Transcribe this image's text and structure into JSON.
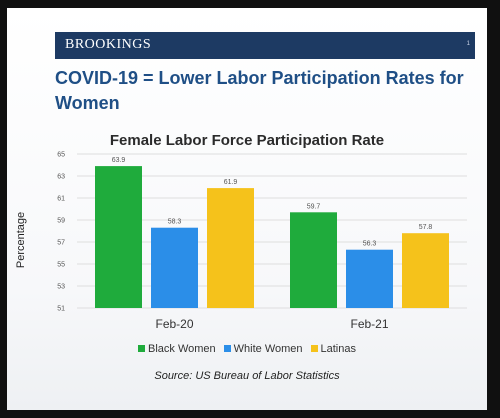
{
  "header": {
    "brand": "BROOKINGS",
    "page_number": "1"
  },
  "slide": {
    "title": "COVID-19 = Lower Labor Participation Rates for Women",
    "source": "Source: US Bureau of Labor Statistics"
  },
  "chart_data": {
    "type": "bar",
    "title": "Female Labor Force Participation Rate",
    "xlabel": "",
    "ylabel": "Percentage",
    "categories": [
      "Feb-20",
      "Feb-21"
    ],
    "ylim": [
      51,
      65
    ],
    "yticks": [
      51,
      53,
      55,
      57,
      59,
      61,
      63,
      65
    ],
    "grid": true,
    "legend_position": "bottom",
    "series": [
      {
        "name": "Black Women",
        "color": "#1fab3c",
        "values": [
          63.9,
          59.7
        ]
      },
      {
        "name": "White Women",
        "color": "#2b8ee8",
        "values": [
          58.3,
          56.3
        ]
      },
      {
        "name": "Latinas",
        "color": "#f5c21b",
        "values": [
          61.9,
          57.8
        ]
      }
    ]
  }
}
